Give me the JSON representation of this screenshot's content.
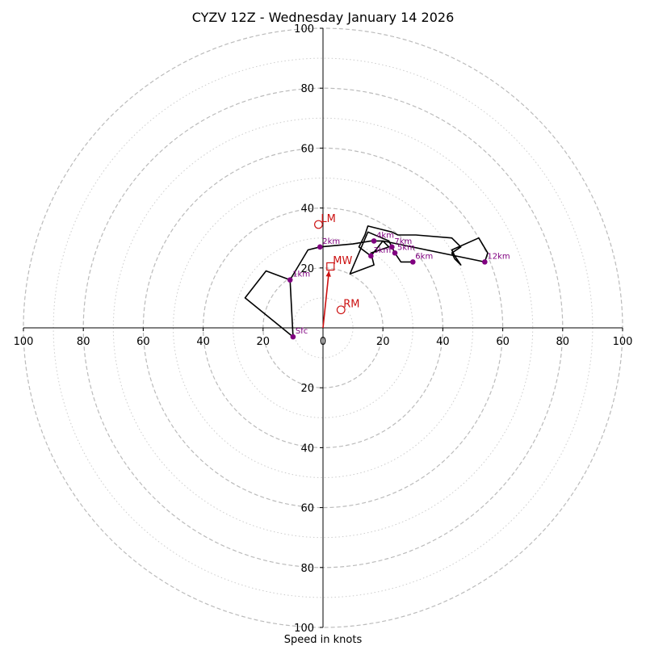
{
  "chart_data": {
    "type": "hodograph",
    "title": "CYZV 12Z - Wednesday January 14 2026",
    "xlabel": "Speed in knots",
    "unit": "knots",
    "axis_range": [
      -100,
      100
    ],
    "axis_tick_values": [
      100,
      80,
      60,
      40,
      20,
      0,
      20,
      40,
      60,
      80,
      100
    ],
    "x_tick_labels": [
      "100",
      "80",
      "60",
      "40",
      "20",
      "0",
      "20",
      "40",
      "60",
      "80",
      "100"
    ],
    "y_tick_labels": [
      "100",
      "80",
      "60",
      "40",
      "20",
      "20",
      "40",
      "60",
      "80",
      "100"
    ],
    "ring_major_speeds": [
      20,
      40,
      60,
      80,
      100
    ],
    "ring_minor_speeds": [
      10,
      30,
      50,
      70,
      90
    ],
    "colors": {
      "trace": "#000000",
      "height_marker": "#800080",
      "storm_motion": "#cc1111",
      "grid_major": "#bbbbbb",
      "grid_minor": "#cccccc",
      "axis": "#000000"
    },
    "trace": [
      [
        -10,
        -3
      ],
      [
        -11,
        16
      ],
      [
        -19,
        19
      ],
      [
        -26,
        10
      ],
      [
        -10,
        -3
      ],
      [
        -11,
        16
      ],
      [
        -19,
        19
      ],
      [
        -26,
        10
      ],
      [
        -10,
        -3
      ],
      [
        -11,
        16
      ],
      [
        -5,
        26
      ],
      [
        -1,
        27
      ],
      [
        10,
        28
      ],
      [
        16,
        29
      ],
      [
        20,
        29
      ],
      [
        16,
        24
      ],
      [
        12,
        27
      ],
      [
        14,
        31
      ],
      [
        15,
        34
      ],
      [
        19,
        33
      ],
      [
        23,
        32
      ],
      [
        25,
        31
      ],
      [
        31,
        31
      ],
      [
        43,
        30
      ],
      [
        46,
        27
      ],
      [
        43,
        25
      ],
      [
        44,
        23
      ],
      [
        46,
        21
      ],
      [
        44,
        24
      ],
      [
        43,
        26
      ],
      [
        52,
        30
      ],
      [
        55,
        25
      ],
      [
        54,
        22
      ],
      [
        20,
        29
      ],
      [
        22,
        27
      ],
      [
        16,
        25
      ],
      [
        17,
        21
      ],
      [
        9,
        18
      ],
      [
        15,
        32
      ],
      [
        22,
        29
      ],
      [
        24,
        25
      ],
      [
        26,
        22
      ],
      [
        30,
        22
      ]
    ],
    "height_markers": [
      {
        "label": "Sfc",
        "u": -10,
        "v": -3
      },
      {
        "label": "1km",
        "u": -11,
        "v": 16
      },
      {
        "label": "2km",
        "u": -1,
        "v": 27
      },
      {
        "label": "3km",
        "u": 16,
        "v": 24
      },
      {
        "label": "4km",
        "u": 17,
        "v": 29
      },
      {
        "label": "5km",
        "u": 24,
        "v": 25
      },
      {
        "label": "6km",
        "u": 30,
        "v": 22
      },
      {
        "label": "7km",
        "u": 23,
        "v": 27
      },
      {
        "label": "12km",
        "u": 54,
        "v": 22
      }
    ],
    "storm_motion": [
      {
        "label": "LM",
        "u": -1.5,
        "v": 34.5,
        "shape": "circle"
      },
      {
        "label": "MW",
        "u": 2.5,
        "v": 20.5,
        "shape": "square"
      },
      {
        "label": "RM",
        "u": 6,
        "v": 6,
        "shape": "circle"
      }
    ],
    "mean_wind_arrow": {
      "from": [
        0,
        0
      ],
      "to": [
        2,
        19
      ]
    }
  }
}
